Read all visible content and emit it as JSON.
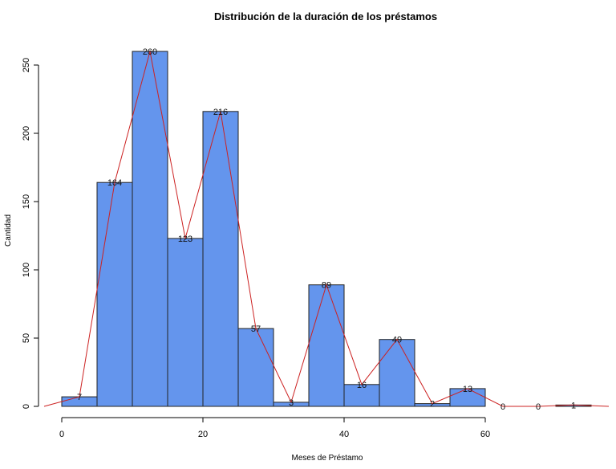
{
  "chart_data": {
    "type": "bar",
    "title": "Distribución de la duración de los préstamos",
    "xlabel": "Meses de Préstamo",
    "ylabel": "Cantidad",
    "bins": [
      [
        0,
        5
      ],
      [
        5,
        10
      ],
      [
        10,
        15
      ],
      [
        15,
        20
      ],
      [
        20,
        25
      ],
      [
        25,
        30
      ],
      [
        30,
        35
      ],
      [
        35,
        40
      ],
      [
        40,
        45
      ],
      [
        45,
        50
      ],
      [
        50,
        55
      ],
      [
        55,
        60
      ],
      [
        60,
        65
      ],
      [
        65,
        70
      ],
      [
        70,
        75
      ]
    ],
    "values": [
      7,
      164,
      260,
      123,
      216,
      57,
      3,
      89,
      16,
      49,
      2,
      13,
      0,
      0,
      1
    ],
    "labels": [
      "7",
      "164",
      "260",
      "123",
      "216",
      "57",
      "3",
      "89",
      "16",
      "49",
      "2",
      "13",
      "0",
      "0",
      "1"
    ],
    "frequency_polygon": {
      "x": [
        -2.5,
        2.5,
        7.5,
        12.5,
        17.5,
        22.5,
        27.5,
        32.5,
        37.5,
        42.5,
        47.5,
        52.5,
        57.5,
        62.5,
        67.5,
        72.5,
        77.5
      ],
      "y": [
        0,
        7,
        164,
        260,
        123,
        216,
        57,
        3,
        89,
        16,
        49,
        2,
        13,
        0,
        0,
        1,
        0
      ]
    },
    "x_ticks": [
      0,
      20,
      40,
      60
    ],
    "x_tick_labels": [
      "0",
      "20",
      "40",
      "60"
    ],
    "y_ticks": [
      0,
      50,
      100,
      150,
      200,
      250
    ],
    "y_tick_labels": [
      "0",
      "50",
      "100",
      "150",
      "200",
      "250"
    ],
    "xlim": [
      -3,
      78
    ],
    "ylim": [
      0,
      260
    ],
    "bar_color": "#6495ED",
    "bar_border_color": "#222222",
    "line_color": "#CC2222",
    "grid": false,
    "legend": "none"
  }
}
